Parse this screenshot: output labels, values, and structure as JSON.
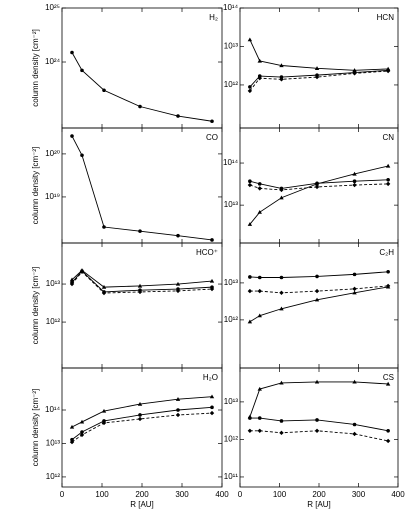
{
  "chart_data": [
    {
      "type": "line",
      "title": "H₂",
      "ylabel": "column density [cm⁻²]",
      "log": true,
      "x": [
        25,
        50,
        105,
        195,
        290,
        375
      ],
      "xlim": [
        0,
        400
      ],
      "xticks": [
        0,
        100,
        200,
        300,
        400
      ],
      "xticklabels": false,
      "ylim": [
        6e+22,
        1e+25
      ],
      "yticks": [
        {
          "value": 1e+24,
          "label": "10²⁴"
        },
        {
          "value": 1e+25,
          "label": "10²⁵"
        }
      ],
      "series": [
        {
          "color": "#000000",
          "dash": "solid",
          "marker": "circle",
          "values": [
            1.5e+24,
            7e+23,
            3e+23,
            1.5e+23,
            1e+23,
            8e+22
          ]
        }
      ]
    },
    {
      "type": "line",
      "title": "HCN",
      "log": true,
      "x": [
        25,
        50,
        105,
        195,
        290,
        375
      ],
      "xlim": [
        0,
        400
      ],
      "xticks": [
        0,
        100,
        200,
        300,
        400
      ],
      "xticklabels": false,
      "ylim": [
        76000000000.0,
        100000000000000.0
      ],
      "yticks": [
        {
          "value": 1000000000000.0,
          "label": "10¹²"
        },
        {
          "value": 10000000000000.0,
          "label": "10¹³"
        },
        {
          "value": 100000000000000.0,
          "label": "10¹⁴"
        }
      ],
      "series": [
        {
          "color": "#000000",
          "dash": "solid",
          "marker": "triangle",
          "values": [
            15000000000000.0,
            4200000000000.0,
            3200000000000.0,
            2700000000000.0,
            2400000000000.0,
            2600000000000.0
          ]
        },
        {
          "color": "#000000",
          "dash": "solid",
          "marker": "circle",
          "values": [
            890000000000.0,
            1700000000000.0,
            1600000000000.0,
            1800000000000.0,
            2100000000000.0,
            2400000000000.0
          ]
        },
        {
          "color": "#000000",
          "dash": "dash",
          "marker": "diamond",
          "values": [
            700000000000.0,
            1500000000000.0,
            1400000000000.0,
            1600000000000.0,
            2000000000000.0,
            2300000000000.0
          ]
        }
      ]
    },
    {
      "type": "line",
      "title": "CO",
      "ylabel": "column density [cm⁻²]",
      "log": true,
      "x": [
        25,
        50,
        105,
        195,
        290,
        375
      ],
      "xlim": [
        0,
        400
      ],
      "xticks": [
        0,
        100,
        200,
        300,
        400
      ],
      "xticklabels": false,
      "ylim": [
        8.5e+17,
        4e+20
      ],
      "yticks": [
        {
          "value": 1e+19,
          "label": "10¹⁹"
        },
        {
          "value": 1e+20,
          "label": "10²⁰"
        }
      ],
      "series": [
        {
          "color": "#000000",
          "dash": "solid",
          "marker": "circle",
          "values": [
            2.6e+20,
            9.3e+19,
            2e+18,
            1.6e+18,
            1.26e+18,
            1e+18
          ]
        }
      ]
    },
    {
      "type": "line",
      "title": "CN",
      "log": true,
      "x": [
        25,
        50,
        105,
        195,
        290,
        375
      ],
      "xlim": [
        0,
        400
      ],
      "xticks": [
        0,
        100,
        200,
        300,
        400
      ],
      "xticklabels": false,
      "ylim": [
        1260000000000.0,
        680000000000000.0
      ],
      "yticks": [
        {
          "value": 10000000000000.0,
          "label": "10¹³"
        },
        {
          "value": 100000000000000.0,
          "label": "10¹⁴"
        }
      ],
      "series": [
        {
          "color": "#000000",
          "dash": "solid",
          "marker": "triangle",
          "values": [
            3500000000000.0,
            6800000000000.0,
            15000000000000.0,
            32000000000000.0,
            55000000000000.0,
            85000000000000.0
          ]
        },
        {
          "color": "#000000",
          "dash": "solid",
          "marker": "circle",
          "values": [
            37000000000000.0,
            32000000000000.0,
            25000000000000.0,
            33000000000000.0,
            37000000000000.0,
            40000000000000.0
          ]
        },
        {
          "color": "#000000",
          "dash": "dash",
          "marker": "diamond",
          "values": [
            30000000000000.0,
            25000000000000.0,
            23000000000000.0,
            27000000000000.0,
            30000000000000.0,
            32000000000000.0
          ]
        }
      ]
    },
    {
      "type": "line",
      "title": "HCO⁺",
      "ylabel": "column density [cm⁻²]",
      "log": true,
      "x": [
        25,
        50,
        105,
        195,
        290,
        375
      ],
      "xlim": [
        0,
        400
      ],
      "xticks": [
        0,
        100,
        200,
        300,
        400
      ],
      "xticklabels": false,
      "ylim": [
        62000000000.0,
        120000000000000.0
      ],
      "yticks": [
        {
          "value": 1000000000000.0,
          "label": "10¹²"
        },
        {
          "value": 10000000000000.0,
          "label": "10¹³"
        }
      ],
      "series": [
        {
          "color": "#000000",
          "dash": "solid",
          "marker": "triangle",
          "values": [
            13000000000000.0,
            23000000000000.0,
            8300000000000.0,
            8900000000000.0,
            10000000000000.0,
            12000000000000.0
          ]
        },
        {
          "color": "#000000",
          "dash": "solid",
          "marker": "circle",
          "values": [
            11000000000000.0,
            22000000000000.0,
            6200000000000.0,
            6900000000000.0,
            7400000000000.0,
            8300000000000.0
          ]
        },
        {
          "color": "#000000",
          "dash": "dash",
          "marker": "diamond",
          "values": [
            10000000000000.0,
            21000000000000.0,
            5800000000000.0,
            6200000000000.0,
            6600000000000.0,
            7400000000000.0
          ]
        }
      ]
    },
    {
      "type": "line",
      "title": "C₂H",
      "log": true,
      "x": [
        25,
        50,
        105,
        195,
        290,
        375
      ],
      "xlim": [
        0,
        400
      ],
      "xticks": [
        0,
        100,
        200,
        300,
        400
      ],
      "xticklabels": false,
      "ylim": [
        50000000000.0,
        120000000000000.0
      ],
      "yticks": [
        {
          "value": 1000000000000.0,
          "label": "10¹²"
        },
        {
          "value": 10000000000000.0,
          "label": "10¹³"
        }
      ],
      "series": [
        {
          "color": "#000000",
          "dash": "solid",
          "marker": "circle",
          "values": [
            14500000000000.0,
            14000000000000.0,
            14000000000000.0,
            15000000000000.0,
            17000000000000.0,
            20000000000000.0
          ]
        },
        {
          "color": "#000000",
          "dash": "dash",
          "marker": "diamond",
          "values": [
            6000000000000.0,
            6000000000000.0,
            5400000000000.0,
            6000000000000.0,
            6900000000000.0,
            8300000000000.0
          ]
        },
        {
          "color": "#000000",
          "dash": "solid",
          "marker": "triangle",
          "values": [
            890000000000.0,
            1300000000000.0,
            2000000000000.0,
            3500000000000.0,
            5400000000000.0,
            7800000000000.0
          ]
        }
      ]
    },
    {
      "type": "line",
      "title": "H₂O",
      "ylabel": "column density [cm⁻²]",
      "xlabel": "R [AU]",
      "log": true,
      "x": [
        25,
        50,
        105,
        195,
        290,
        375
      ],
      "xlim": [
        0,
        400
      ],
      "xticks": [
        0,
        100,
        200,
        300,
        400
      ],
      "xticklabels": true,
      "ylim": [
        500000000000.0,
        1800000000000000.0
      ],
      "yticks": [
        {
          "value": 1000000000000.0,
          "label": "10¹²"
        },
        {
          "value": 10000000000000.0,
          "label": "10¹³"
        },
        {
          "value": 100000000000000.0,
          "label": "10¹⁴"
        }
      ],
      "series": [
        {
          "color": "#000000",
          "dash": "solid",
          "marker": "triangle",
          "values": [
            31000000000000.0,
            44000000000000.0,
            93000000000000.0,
            150000000000000.0,
            210000000000000.0,
            250000000000000.0
          ]
        },
        {
          "color": "#000000",
          "dash": "solid",
          "marker": "circle",
          "values": [
            13000000000000.0,
            22000000000000.0,
            47000000000000.0,
            71000000000000.0,
            100000000000000.0,
            120000000000000.0
          ]
        },
        {
          "color": "#000000",
          "dash": "dash",
          "marker": "diamond",
          "values": [
            11000000000000.0,
            18000000000000.0,
            41000000000000.0,
            54000000000000.0,
            71000000000000.0,
            81000000000000.0
          ]
        }
      ]
    },
    {
      "type": "line",
      "title": "CS",
      "xlabel": "R [AU]",
      "log": true,
      "x": [
        25,
        50,
        105,
        195,
        290,
        375
      ],
      "xlim": [
        0,
        400
      ],
      "xticks": [
        0,
        100,
        200,
        300,
        400
      ],
      "xticklabels": true,
      "ylim": [
        54000000000.0,
        80000000000000.0
      ],
      "yticks": [
        {
          "value": 100000000000.0,
          "label": "10¹¹"
        },
        {
          "value": 1000000000000.0,
          "label": "10¹²"
        },
        {
          "value": 10000000000000.0,
          "label": "10¹³"
        }
      ],
      "series": [
        {
          "color": "#000000",
          "dash": "solid",
          "marker": "triangle",
          "values": [
            4000000000000.0,
            22000000000000.0,
            32000000000000.0,
            34000000000000.0,
            34000000000000.0,
            30000000000000.0
          ]
        },
        {
          "color": "#000000",
          "dash": "solid",
          "marker": "circle",
          "values": [
            3700000000000.0,
            3700000000000.0,
            3100000000000.0,
            3300000000000.0,
            2500000000000.0,
            1700000000000.0
          ]
        },
        {
          "color": "#000000",
          "dash": "dash",
          "marker": "diamond",
          "values": [
            1700000000000.0,
            1700000000000.0,
            1500000000000.0,
            1700000000000.0,
            1400000000000.0,
            910000000000.0
          ]
        }
      ]
    }
  ]
}
